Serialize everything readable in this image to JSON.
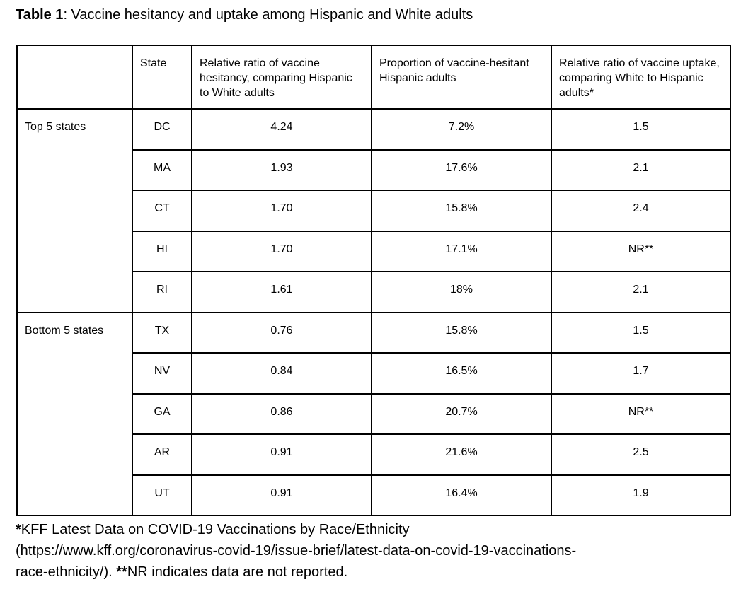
{
  "title_segments": [
    {
      "text": "Table 1",
      "bold": true
    },
    {
      "text": ": Vaccine hesitancy and uptake among Hispanic and White adults",
      "bold": false
    }
  ],
  "table": {
    "headers": [
      "",
      "State",
      "Relative ratio of vaccine hesitancy, comparing Hispanic to White adults",
      "Proportion of vaccine-hesitant Hispanic adults",
      "Relative ratio of vaccine uptake, comparing White to Hispanic adults*"
    ],
    "groups": [
      {
        "label": "Top 5 states",
        "rows": [
          {
            "state": "DC",
            "hesitancy_ratio": "4.24",
            "proportion": "7.2%",
            "uptake_ratio": "1.5"
          },
          {
            "state": "MA",
            "hesitancy_ratio": "1.93",
            "proportion": "17.6%",
            "uptake_ratio": "2.1"
          },
          {
            "state": "CT",
            "hesitancy_ratio": "1.70",
            "proportion": "15.8%",
            "uptake_ratio": "2.4"
          },
          {
            "state": "HI",
            "hesitancy_ratio": "1.70",
            "proportion": "17.1%",
            "uptake_ratio": "NR**"
          },
          {
            "state": "RI",
            "hesitancy_ratio": "1.61",
            "proportion": "18%",
            "uptake_ratio": "2.1"
          }
        ]
      },
      {
        "label": "Bottom 5 states",
        "rows": [
          {
            "state": "TX",
            "hesitancy_ratio": "0.76",
            "proportion": "15.8%",
            "uptake_ratio": "1.5"
          },
          {
            "state": "NV",
            "hesitancy_ratio": "0.84",
            "proportion": "16.5%",
            "uptake_ratio": "1.7"
          },
          {
            "state": "GA",
            "hesitancy_ratio": "0.86",
            "proportion": "20.7%",
            "uptake_ratio": "NR**"
          },
          {
            "state": "AR",
            "hesitancy_ratio": "0.91",
            "proportion": "21.6%",
            "uptake_ratio": "2.5"
          },
          {
            "state": "UT",
            "hesitancy_ratio": "0.91",
            "proportion": "16.4%",
            "uptake_ratio": "1.9"
          }
        ]
      }
    ]
  },
  "footnote_lines": [
    [
      {
        "text": "*",
        "bold": true
      },
      {
        "text": "KFF Latest Data on COVID-19 Vaccinations by Race/Ethnicity",
        "bold": false
      }
    ],
    [
      {
        "text": "(https://www.kff.org/coronavirus-covid-19/issue-brief/latest-data-on-covid-19-vaccinations-",
        "bold": false
      }
    ],
    [
      {
        "text": "race-ethnicity/). ",
        "bold": false
      },
      {
        "text": "**",
        "bold": true
      },
      {
        "text": "NR indicates data are not reported.",
        "bold": false
      }
    ]
  ],
  "colors": {
    "text": "#000000",
    "border": "#000000",
    "background": "#ffffff"
  }
}
